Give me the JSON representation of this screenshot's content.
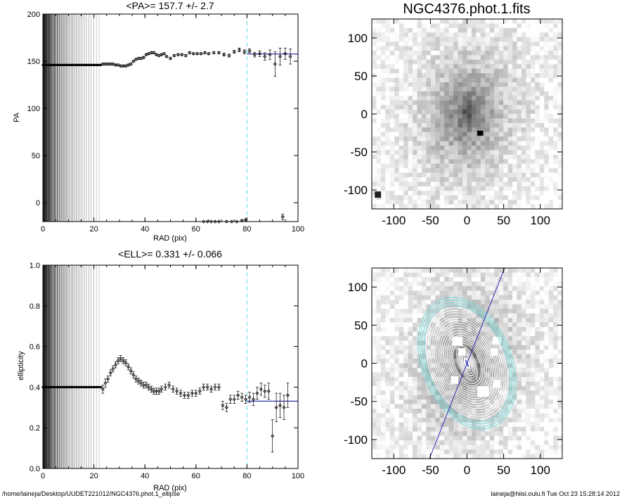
{
  "footer": {
    "path": "/home/laineja/Desktop/UUDET221012/NGC4376.phot.1_ellipse",
    "user_time": "laineja@hiisi.oulu.fi  Tue Oct 23 15:28:14 2012"
  },
  "colors": {
    "fit_line": "#3333aa",
    "cutoff_line": "#80e0e8",
    "contours": "#ffffff",
    "outer_contours": "#70d8d8",
    "major_axis": "#2a2ab0"
  },
  "chart_data": [
    {
      "id": "pa_profile",
      "type": "scatter",
      "title": "<PA>= 157.7 +/-   2.7",
      "xlabel": "RAD (pix)",
      "ylabel": "PA",
      "xlim": [
        0,
        100
      ],
      "ylim": [
        -20,
        200
      ],
      "xticks": [
        0,
        20,
        40,
        60,
        80,
        100
      ],
      "yticks": [
        0,
        50,
        100,
        150,
        200
      ],
      "grid": false,
      "cutoff_x": 80,
      "mean_value": 157.7,
      "mean_error": 2.7,
      "inner_fixed_value": 146,
      "inner_fixed_range": [
        0,
        23
      ],
      "points": [
        [
          23.5,
          147,
          1
        ],
        [
          24.5,
          147,
          1
        ],
        [
          25.5,
          147,
          1
        ],
        [
          26.5,
          147,
          1
        ],
        [
          27.5,
          147,
          1
        ],
        [
          28.5,
          146,
          1
        ],
        [
          29.5,
          146,
          1
        ],
        [
          30.5,
          145,
          1
        ],
        [
          31.5,
          145,
          1
        ],
        [
          32.5,
          145,
          1
        ],
        [
          33.5,
          146,
          1
        ],
        [
          34.5,
          147,
          1
        ],
        [
          35.5,
          150,
          1
        ],
        [
          36.5,
          152,
          1
        ],
        [
          37.5,
          153,
          1
        ],
        [
          38.5,
          153,
          1
        ],
        [
          39.5,
          154,
          1
        ],
        [
          40.5,
          157,
          1
        ],
        [
          41.5,
          158,
          1
        ],
        [
          42.5,
          159,
          1
        ],
        [
          43.5,
          159,
          1
        ],
        [
          44.5,
          157,
          1
        ],
        [
          45.5,
          156,
          1
        ],
        [
          46.5,
          157,
          1
        ],
        [
          47.5,
          158,
          1
        ],
        [
          48.5,
          155,
          1
        ],
        [
          50,
          153,
          1
        ],
        [
          51.5,
          156,
          1
        ],
        [
          53,
          157,
          1
        ],
        [
          54.5,
          157,
          1
        ],
        [
          56,
          156,
          1
        ],
        [
          57.5,
          159,
          1
        ],
        [
          59,
          158,
          1
        ],
        [
          60.5,
          158,
          1
        ],
        [
          62,
          158,
          1
        ],
        [
          63.5,
          159,
          1
        ],
        [
          65,
          158,
          1
        ],
        [
          67,
          159,
          1
        ],
        [
          69,
          159,
          1
        ],
        [
          71,
          157,
          1.5
        ],
        [
          73,
          156,
          1.5
        ],
        [
          75,
          160,
          1.5
        ],
        [
          77,
          162,
          2
        ],
        [
          79,
          160,
          2
        ],
        [
          81,
          161,
          2
        ],
        [
          83,
          157,
          2.5
        ],
        [
          85,
          158,
          3
        ],
        [
          87,
          155,
          4
        ],
        [
          89,
          157,
          5
        ],
        [
          91,
          147,
          13
        ],
        [
          93,
          155,
          9
        ],
        [
          95,
          158,
          6
        ],
        [
          97,
          155,
          8
        ],
        [
          63,
          -20,
          0
        ],
        [
          64.5,
          -20,
          0
        ],
        [
          66,
          -20,
          0
        ],
        [
          67.5,
          -20,
          0
        ],
        [
          69,
          -20,
          0
        ],
        [
          72,
          -20,
          0
        ],
        [
          74,
          -20,
          0
        ],
        [
          76,
          -20,
          0
        ],
        [
          78,
          -19,
          1
        ],
        [
          79.5,
          -18,
          1
        ],
        [
          94,
          -15,
          3
        ]
      ]
    },
    {
      "id": "ell_profile",
      "type": "scatter",
      "title": "<ELL>= 0.331 +/-  0.066",
      "xlabel": "RAD (pix)",
      "ylabel": "ellipticity",
      "xlim": [
        0,
        100
      ],
      "ylim": [
        0.0,
        1.0
      ],
      "xticks": [
        0,
        20,
        40,
        60,
        80,
        100
      ],
      "yticks": [
        "0.0",
        "0.2",
        "0.4",
        "0.6",
        "0.8",
        "1.0"
      ],
      "grid": false,
      "cutoff_x": 80,
      "mean_value": 0.331,
      "mean_error": 0.066,
      "inner_fixed_value": 0.4,
      "inner_fixed_range": [
        0,
        23
      ],
      "points": [
        [
          23.5,
          0.39,
          0.02
        ],
        [
          24.5,
          0.42,
          0.02
        ],
        [
          25.5,
          0.44,
          0.015
        ],
        [
          26.5,
          0.47,
          0.015
        ],
        [
          27.5,
          0.49,
          0.015
        ],
        [
          28.5,
          0.51,
          0.015
        ],
        [
          29.5,
          0.53,
          0.015
        ],
        [
          30.5,
          0.54,
          0.015
        ],
        [
          31.5,
          0.53,
          0.015
        ],
        [
          32.5,
          0.52,
          0.015
        ],
        [
          33.5,
          0.5,
          0.015
        ],
        [
          34.5,
          0.48,
          0.015
        ],
        [
          35.5,
          0.46,
          0.015
        ],
        [
          36.5,
          0.44,
          0.015
        ],
        [
          37.5,
          0.43,
          0.015
        ],
        [
          38.5,
          0.42,
          0.015
        ],
        [
          39.5,
          0.41,
          0.015
        ],
        [
          40.5,
          0.41,
          0.015
        ],
        [
          41.5,
          0.4,
          0.015
        ],
        [
          42.5,
          0.39,
          0.015
        ],
        [
          43.5,
          0.38,
          0.015
        ],
        [
          44.5,
          0.38,
          0.015
        ],
        [
          45.5,
          0.38,
          0.015
        ],
        [
          46.5,
          0.39,
          0.015
        ],
        [
          48,
          0.4,
          0.015
        ],
        [
          49.5,
          0.41,
          0.015
        ],
        [
          51,
          0.39,
          0.015
        ],
        [
          52.5,
          0.38,
          0.015
        ],
        [
          54,
          0.37,
          0.015
        ],
        [
          55.5,
          0.36,
          0.015
        ],
        [
          57,
          0.36,
          0.015
        ],
        [
          58.5,
          0.37,
          0.015
        ],
        [
          60,
          0.37,
          0.015
        ],
        [
          61.5,
          0.38,
          0.015
        ],
        [
          63,
          0.4,
          0.015
        ],
        [
          64.5,
          0.4,
          0.015
        ],
        [
          66,
          0.39,
          0.015
        ],
        [
          67.5,
          0.4,
          0.015
        ],
        [
          69,
          0.4,
          0.015
        ],
        [
          70.5,
          0.31,
          0.02
        ],
        [
          72,
          0.3,
          0.02
        ],
        [
          73.5,
          0.34,
          0.02
        ],
        [
          75,
          0.34,
          0.02
        ],
        [
          76.5,
          0.36,
          0.02
        ],
        [
          78,
          0.35,
          0.02
        ],
        [
          79.5,
          0.34,
          0.02
        ],
        [
          81,
          0.35,
          0.025
        ],
        [
          82.5,
          0.34,
          0.03
        ],
        [
          84,
          0.37,
          0.03
        ],
        [
          85.5,
          0.39,
          0.03
        ],
        [
          87,
          0.38,
          0.03
        ],
        [
          88.5,
          0.38,
          0.04
        ],
        [
          90,
          0.16,
          0.08
        ],
        [
          91.5,
          0.3,
          0.07
        ],
        [
          93,
          0.31,
          0.06
        ],
        [
          94.5,
          0.3,
          0.06
        ],
        [
          96,
          0.36,
          0.06
        ]
      ]
    },
    {
      "id": "galaxy_image",
      "type": "heatmap",
      "title": "NGC4376.phot.1.fits",
      "xlim": [
        -130,
        130
      ],
      "ylim": [
        -125,
        125
      ],
      "xticks": [
        -100,
        -50,
        0,
        50,
        100
      ],
      "yticks": [
        -100,
        -50,
        0,
        50,
        100
      ],
      "colormap": "inverse-gray"
    },
    {
      "id": "galaxy_ellipses",
      "type": "heatmap",
      "title": "",
      "xlim": [
        -130,
        130
      ],
      "ylim": [
        -125,
        125
      ],
      "xticks": [
        -100,
        -50,
        0,
        50,
        100
      ],
      "yticks": [
        -100,
        -50,
        0,
        50,
        100
      ],
      "colormap": "inverse-gray",
      "major_axis_pa": 157.7,
      "mean_ellipticity": 0.331
    }
  ]
}
